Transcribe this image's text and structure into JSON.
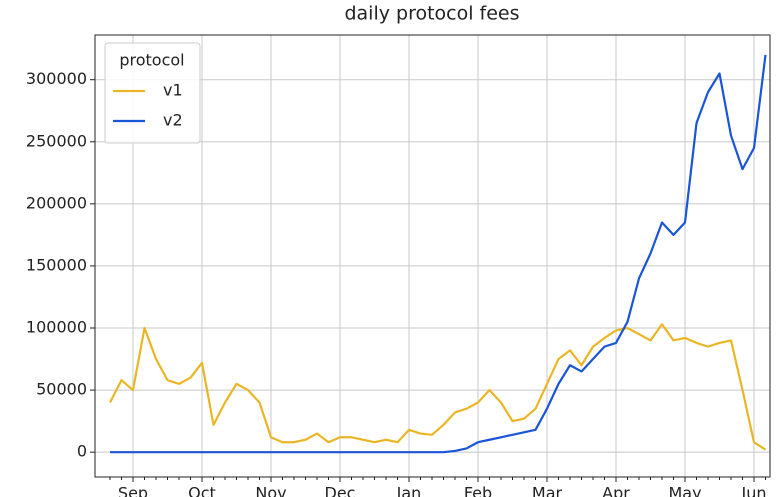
{
  "chart_data": {
    "type": "line",
    "title": "daily protocol fees",
    "categories": [
      null,
      null,
      "Sep",
      null,
      null,
      null,
      null,
      null,
      "Oct",
      null,
      null,
      null,
      null,
      null,
      "Nov",
      null,
      null,
      null,
      null,
      null,
      "Dec",
      null,
      null,
      null,
      null,
      null,
      "Jan",
      null,
      null,
      null,
      null,
      null,
      "Feb",
      null,
      null,
      null,
      null,
      null,
      "Mar",
      null,
      null,
      null,
      null,
      null,
      "Apr",
      null,
      null,
      null,
      null,
      null,
      "May",
      null,
      null,
      null,
      null,
      null,
      "Jun",
      null
    ],
    "series": [
      {
        "name": "v1",
        "color": "#eab626",
        "values": [
          40000,
          58000,
          50000,
          100000,
          75000,
          58000,
          55000,
          60000,
          72000,
          22000,
          40000,
          55000,
          50000,
          40000,
          12000,
          8000,
          8000,
          10000,
          15000,
          8000,
          12000,
          12000,
          10000,
          8000,
          10000,
          8000,
          18000,
          15000,
          14000,
          22000,
          32000,
          35000,
          40000,
          50000,
          40000,
          25000,
          27000,
          35000,
          55000,
          75000,
          82000,
          70000,
          85000,
          92000,
          98000,
          100000,
          95000,
          90000,
          103000,
          90000,
          92000,
          88000,
          85000,
          88000,
          90000,
          50000,
          8000,
          2000
        ]
      },
      {
        "name": "v2",
        "color": "#1a55d8",
        "values": [
          0,
          0,
          0,
          0,
          0,
          0,
          0,
          0,
          0,
          0,
          0,
          0,
          0,
          0,
          0,
          0,
          0,
          0,
          0,
          0,
          0,
          0,
          0,
          0,
          0,
          0,
          0,
          0,
          0,
          0,
          1000,
          3000,
          8000,
          10000,
          12000,
          14000,
          16000,
          18000,
          35000,
          55000,
          70000,
          65000,
          75000,
          85000,
          88000,
          105000,
          140000,
          160000,
          185000,
          175000,
          185000,
          265000,
          290000,
          305000,
          255000,
          228000,
          245000,
          320000
        ]
      }
    ],
    "ylim": [
      -20000,
      336000
    ],
    "yticks": [
      0,
      50000,
      100000,
      150000,
      200000,
      250000,
      300000
    ],
    "grid": true,
    "legend_title": "protocol",
    "legend_position": "upper-left"
  }
}
